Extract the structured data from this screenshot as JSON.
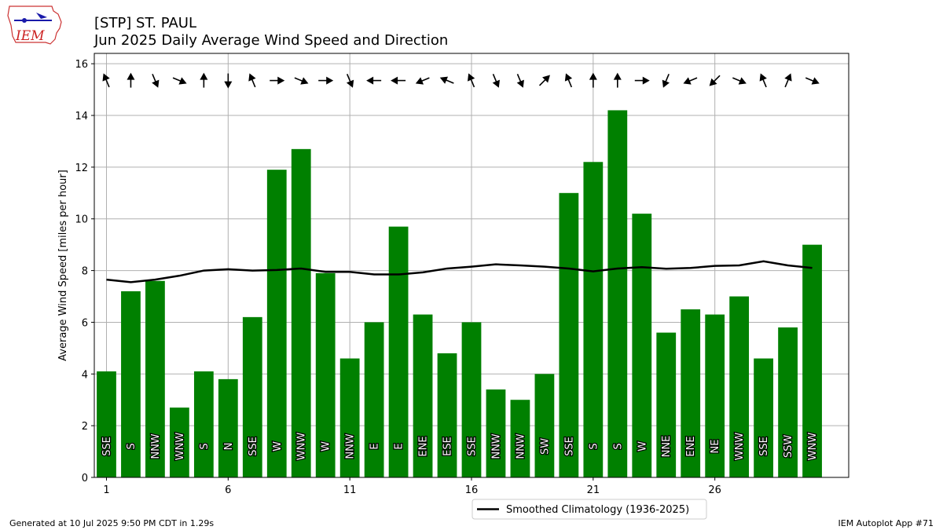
{
  "header": {
    "title_line1": "[STP] ST. PAUL",
    "title_line2": "Jun 2025 Daily Average Wind Speed and Direction"
  },
  "logo": {
    "text": "IEM",
    "icon": "iem-iowa-logo"
  },
  "footer": {
    "left": "Generated at 10 Jul 2025 9:50 PM CDT in 1.29s",
    "right": "IEM Autoplot App #71"
  },
  "colors": {
    "bar": "#008000",
    "climatology_line": "#000000",
    "grid": "#b0b0b0"
  },
  "chart_data": {
    "type": "bar",
    "title": "Jun 2025 Daily Average Wind Speed and Direction",
    "xlabel": "",
    "ylabel": "Average Wind Speed [miles per hour]",
    "xlim": [
      0.5,
      31.5
    ],
    "ylim": [
      0,
      16.4
    ],
    "xticks": [
      1,
      6,
      11,
      16,
      21,
      26
    ],
    "yticks": [
      0,
      2,
      4,
      6,
      8,
      10,
      12,
      14,
      16
    ],
    "grid": true,
    "legend_position": "bottom-center",
    "days": [
      1,
      2,
      3,
      4,
      5,
      6,
      7,
      8,
      9,
      10,
      11,
      12,
      13,
      14,
      15,
      16,
      17,
      18,
      19,
      20,
      21,
      22,
      23,
      24,
      25,
      26,
      27,
      28,
      29,
      30
    ],
    "speeds": [
      4.1,
      7.2,
      7.6,
      2.7,
      4.1,
      3.8,
      6.2,
      11.9,
      12.7,
      7.9,
      4.6,
      6.0,
      9.7,
      6.3,
      4.8,
      6.0,
      3.4,
      3.0,
      4.0,
      11.0,
      12.2,
      14.2,
      10.2,
      5.6,
      6.5,
      6.3,
      7.0,
      4.6,
      5.8,
      9.0
    ],
    "directions": [
      "SSE",
      "S",
      "NNW",
      "WNW",
      "S",
      "N",
      "SSE",
      "W",
      "WNW",
      "W",
      "NNW",
      "E",
      "E",
      "ENE",
      "ESE",
      "SSE",
      "NNW",
      "NNW",
      "SW",
      "SSE",
      "S",
      "S",
      "W",
      "NNE",
      "ENE",
      "NE",
      "WNW",
      "SSE",
      "SSW",
      "WNW"
    ],
    "climatology": {
      "name": "Smoothed Climatology (1936-2025)",
      "values": [
        7.65,
        7.55,
        7.65,
        7.8,
        8.0,
        8.05,
        8.0,
        8.02,
        8.08,
        7.95,
        7.95,
        7.85,
        7.85,
        7.93,
        8.08,
        8.15,
        8.24,
        8.2,
        8.15,
        8.08,
        7.97,
        8.08,
        8.13,
        8.07,
        8.1,
        8.18,
        8.2,
        8.36,
        8.2,
        8.1
      ]
    }
  }
}
